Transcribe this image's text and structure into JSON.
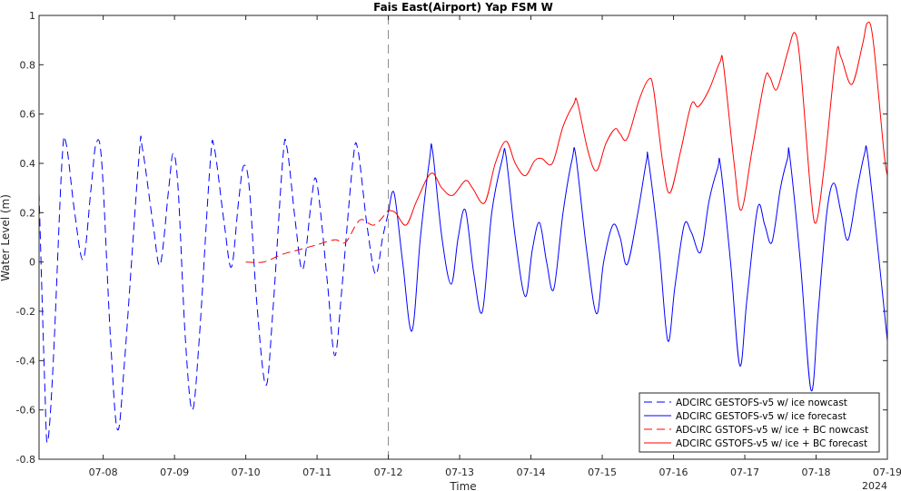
{
  "chart_data": {
    "type": "line",
    "title": "Fais East(Airport) Yap FSM W",
    "xlabel": "Time",
    "ylabel": "Water Level (m)",
    "x_range_days": [
      7.1,
      19.0
    ],
    "ylim": [
      -0.8,
      1.0
    ],
    "yticks": [
      -0.8,
      -0.6,
      -0.4,
      -0.2,
      0,
      0.2,
      0.4,
      0.6,
      0.8,
      1
    ],
    "ytick_labels": [
      "-0.8",
      "-0.6",
      "-0.4",
      "-0.2",
      "0",
      "0.2",
      "0.4",
      "0.6",
      "0.8",
      "1"
    ],
    "xticks": [
      8,
      9,
      10,
      11,
      12,
      13,
      14,
      15,
      16,
      17,
      18,
      19
    ],
    "xtick_labels": [
      "07-08",
      "07-09",
      "07-10",
      "07-11",
      "07-12",
      "07-13",
      "07-14",
      "07-15",
      "07-16",
      "07-17",
      "07-18",
      "07-19"
    ],
    "year_label": "2024",
    "nowcast_forecast_boundary": 12.0,
    "grid": false,
    "legend_position": "bottom-right",
    "series": [
      {
        "name": "ADCIRC GESTOFS-v5 w/ ice nowcast",
        "color": "#0000ff",
        "dash": "dashed",
        "points": [
          [
            7.1,
            0.28
          ],
          [
            7.18,
            -0.5
          ],
          [
            7.22,
            -0.73
          ],
          [
            7.3,
            -0.4
          ],
          [
            7.42,
            0.4
          ],
          [
            7.48,
            0.48
          ],
          [
            7.6,
            0.2
          ],
          [
            7.72,
            0.01
          ],
          [
            7.83,
            0.3
          ],
          [
            7.9,
            0.48
          ],
          [
            7.98,
            0.4
          ],
          [
            8.1,
            -0.3
          ],
          [
            8.2,
            -0.68
          ],
          [
            8.3,
            -0.4
          ],
          [
            8.5,
            0.42
          ],
          [
            8.55,
            0.46
          ],
          [
            8.7,
            0.15
          ],
          [
            8.8,
            -0.01
          ],
          [
            8.92,
            0.3
          ],
          [
            8.98,
            0.44
          ],
          [
            9.05,
            0.3
          ],
          [
            9.15,
            -0.3
          ],
          [
            9.25,
            -0.6
          ],
          [
            9.35,
            -0.3
          ],
          [
            9.5,
            0.4
          ],
          [
            9.56,
            0.46
          ],
          [
            9.7,
            0.15
          ],
          [
            9.8,
            -0.02
          ],
          [
            9.9,
            0.25
          ],
          [
            9.97,
            0.39
          ],
          [
            10.05,
            0.3
          ],
          [
            10.15,
            -0.15
          ],
          [
            10.28,
            -0.5
          ],
          [
            10.38,
            -0.2
          ],
          [
            10.52,
            0.42
          ],
          [
            10.58,
            0.46
          ],
          [
            10.7,
            0.15
          ],
          [
            10.8,
            -0.03
          ],
          [
            10.92,
            0.25
          ],
          [
            10.98,
            0.34
          ],
          [
            11.05,
            0.2
          ],
          [
            11.15,
            -0.1
          ],
          [
            11.25,
            -0.38
          ],
          [
            11.35,
            -0.1
          ],
          [
            11.5,
            0.4
          ],
          [
            11.57,
            0.46
          ],
          [
            11.7,
            0.15
          ],
          [
            11.82,
            -0.05
          ],
          [
            11.92,
            0.1
          ],
          [
            12.0,
            0.2
          ]
        ]
      },
      {
        "name": "ADCIRC GESTOFS-v5 w/ ice forecast",
        "color": "#0000ff",
        "dash": "solid",
        "points": [
          [
            12.0,
            0.2
          ],
          [
            12.08,
            0.28
          ],
          [
            12.2,
            0.0
          ],
          [
            12.33,
            -0.28
          ],
          [
            12.45,
            0.1
          ],
          [
            12.58,
            0.42
          ],
          [
            12.62,
            0.45
          ],
          [
            12.75,
            0.1
          ],
          [
            12.88,
            -0.09
          ],
          [
            12.98,
            0.1
          ],
          [
            13.08,
            0.21
          ],
          [
            13.2,
            -0.05
          ],
          [
            13.32,
            -0.2
          ],
          [
            13.45,
            0.2
          ],
          [
            13.6,
            0.42
          ],
          [
            13.65,
            0.43
          ],
          [
            13.78,
            0.1
          ],
          [
            13.92,
            -0.14
          ],
          [
            14.02,
            0.05
          ],
          [
            14.12,
            0.16
          ],
          [
            14.22,
            0.0
          ],
          [
            14.32,
            -0.11
          ],
          [
            14.45,
            0.2
          ],
          [
            14.58,
            0.42
          ],
          [
            14.63,
            0.43
          ],
          [
            14.78,
            0.05
          ],
          [
            14.92,
            -0.21
          ],
          [
            15.02,
            0.0
          ],
          [
            15.15,
            0.15
          ],
          [
            15.25,
            0.1
          ],
          [
            15.35,
            -0.01
          ],
          [
            15.5,
            0.2
          ],
          [
            15.62,
            0.41
          ],
          [
            15.65,
            0.41
          ],
          [
            15.8,
            0.05
          ],
          [
            15.92,
            -0.32
          ],
          [
            16.02,
            -0.1
          ],
          [
            16.15,
            0.15
          ],
          [
            16.25,
            0.12
          ],
          [
            16.38,
            0.04
          ],
          [
            16.5,
            0.25
          ],
          [
            16.62,
            0.38
          ],
          [
            16.66,
            0.39
          ],
          [
            16.8,
            0.0
          ],
          [
            16.93,
            -0.42
          ],
          [
            17.03,
            -0.15
          ],
          [
            17.18,
            0.22
          ],
          [
            17.28,
            0.15
          ],
          [
            17.38,
            0.08
          ],
          [
            17.5,
            0.3
          ],
          [
            17.6,
            0.42
          ],
          [
            17.63,
            0.43
          ],
          [
            17.78,
            0.0
          ],
          [
            17.93,
            -0.52
          ],
          [
            18.03,
            -0.2
          ],
          [
            18.15,
            0.2
          ],
          [
            18.25,
            0.32
          ],
          [
            18.35,
            0.2
          ],
          [
            18.45,
            0.09
          ],
          [
            18.58,
            0.3
          ],
          [
            18.68,
            0.44
          ],
          [
            18.72,
            0.44
          ],
          [
            18.85,
            0.1
          ],
          [
            19.0,
            -0.32
          ]
        ]
      },
      {
        "name": "ADCIRC GSTOFS-v5 w/ ice + BC nowcast",
        "color": "#ff0000",
        "dash": "dashed",
        "points": [
          [
            10.0,
            0.0
          ],
          [
            10.25,
            0.0
          ],
          [
            10.5,
            0.03
          ],
          [
            10.75,
            0.05
          ],
          [
            11.0,
            0.07
          ],
          [
            11.25,
            0.09
          ],
          [
            11.4,
            0.08
          ],
          [
            11.6,
            0.17
          ],
          [
            11.8,
            0.15
          ],
          [
            12.0,
            0.21
          ]
        ]
      },
      {
        "name": "ADCIRC GSTOFS-v5 w/ ice + BC forecast",
        "color": "#ff0000",
        "dash": "solid",
        "points": [
          [
            12.0,
            0.21
          ],
          [
            12.1,
            0.2
          ],
          [
            12.25,
            0.15
          ],
          [
            12.4,
            0.25
          ],
          [
            12.6,
            0.36
          ],
          [
            12.75,
            0.3
          ],
          [
            12.9,
            0.27
          ],
          [
            13.08,
            0.33
          ],
          [
            13.18,
            0.3
          ],
          [
            13.35,
            0.24
          ],
          [
            13.5,
            0.4
          ],
          [
            13.65,
            0.49
          ],
          [
            13.78,
            0.4
          ],
          [
            13.92,
            0.35
          ],
          [
            14.05,
            0.41
          ],
          [
            14.15,
            0.42
          ],
          [
            14.3,
            0.4
          ],
          [
            14.45,
            0.55
          ],
          [
            14.6,
            0.64
          ],
          [
            14.65,
            0.65
          ],
          [
            14.8,
            0.45
          ],
          [
            14.92,
            0.37
          ],
          [
            15.05,
            0.48
          ],
          [
            15.18,
            0.54
          ],
          [
            15.25,
            0.52
          ],
          [
            15.35,
            0.5
          ],
          [
            15.52,
            0.66
          ],
          [
            15.65,
            0.74
          ],
          [
            15.72,
            0.7
          ],
          [
            15.85,
            0.4
          ],
          [
            15.95,
            0.28
          ],
          [
            16.1,
            0.45
          ],
          [
            16.25,
            0.64
          ],
          [
            16.35,
            0.63
          ],
          [
            16.5,
            0.7
          ],
          [
            16.65,
            0.81
          ],
          [
            16.7,
            0.8
          ],
          [
            16.85,
            0.4
          ],
          [
            16.95,
            0.21
          ],
          [
            17.1,
            0.45
          ],
          [
            17.28,
            0.74
          ],
          [
            17.35,
            0.75
          ],
          [
            17.45,
            0.7
          ],
          [
            17.6,
            0.85
          ],
          [
            17.7,
            0.93
          ],
          [
            17.78,
            0.8
          ],
          [
            17.92,
            0.3
          ],
          [
            18.0,
            0.16
          ],
          [
            18.12,
            0.4
          ],
          [
            18.28,
            0.84
          ],
          [
            18.35,
            0.83
          ],
          [
            18.5,
            0.72
          ],
          [
            18.65,
            0.88
          ],
          [
            18.72,
            0.97
          ],
          [
            18.8,
            0.9
          ],
          [
            18.95,
            0.45
          ],
          [
            19.0,
            0.35
          ]
        ]
      }
    ]
  }
}
